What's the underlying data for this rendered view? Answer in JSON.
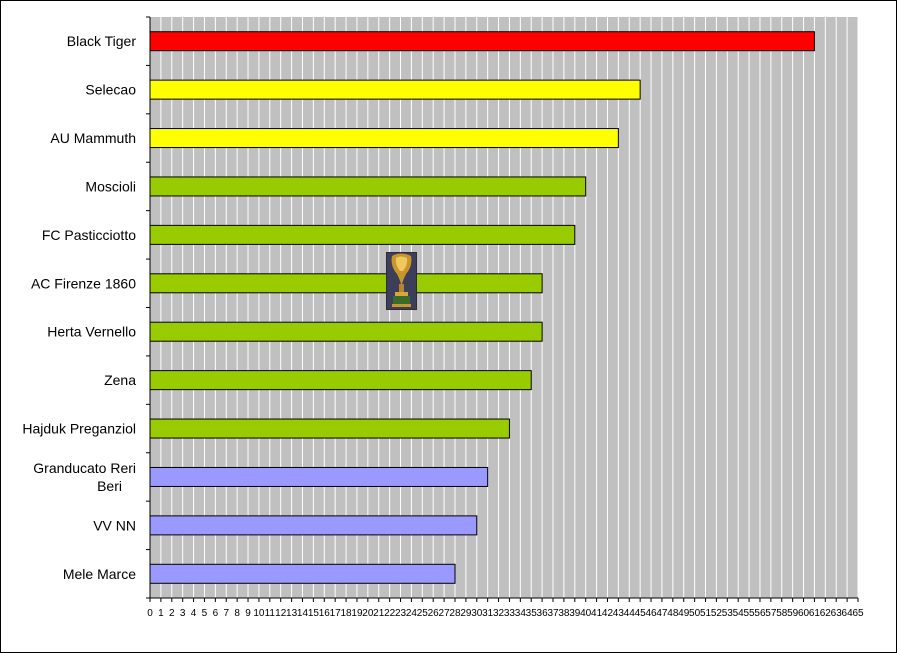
{
  "chart_data": {
    "type": "bar",
    "orientation": "horizontal",
    "categories": [
      "Black Tiger",
      "Selecao",
      "AU Mammuth",
      "Moscioli",
      "FC Pasticciotto",
      "AC Firenze 1860",
      "Herta Vernello",
      "Zena",
      "Hajduk Preganziol",
      "Granducato Reri Beri",
      "VV NN",
      "Mele Marce"
    ],
    "values": [
      61,
      45,
      43,
      40,
      39,
      36,
      36,
      35,
      33,
      31,
      30,
      28
    ],
    "bar_colors": [
      "#ff0000",
      "#ffff00",
      "#ffff00",
      "#99cc00",
      "#99cc00",
      "#99cc00",
      "#99cc00",
      "#99cc00",
      "#99cc00",
      "#9999ff",
      "#9999ff",
      "#9999ff"
    ],
    "xlim": [
      0,
      65
    ],
    "xticks": [
      0,
      1,
      2,
      3,
      4,
      5,
      6,
      7,
      8,
      9,
      10,
      11,
      12,
      13,
      14,
      15,
      16,
      17,
      18,
      19,
      20,
      21,
      22,
      23,
      24,
      25,
      26,
      27,
      28,
      29,
      30,
      31,
      32,
      33,
      34,
      35,
      36,
      37,
      38,
      39,
      40,
      41,
      42,
      43,
      44,
      45,
      46,
      47,
      48,
      49,
      50,
      51,
      52,
      53,
      54,
      55,
      56,
      57,
      58,
      59,
      60,
      61,
      62,
      63,
      64,
      65
    ],
    "grid": true,
    "plot_background": "#c0c0c0",
    "grid_color": "#ffffff",
    "legend": "none",
    "title": "",
    "xlabel": "",
    "ylabel": ""
  },
  "decorations": {
    "trophy_icon": "world-cup-trophy"
  }
}
